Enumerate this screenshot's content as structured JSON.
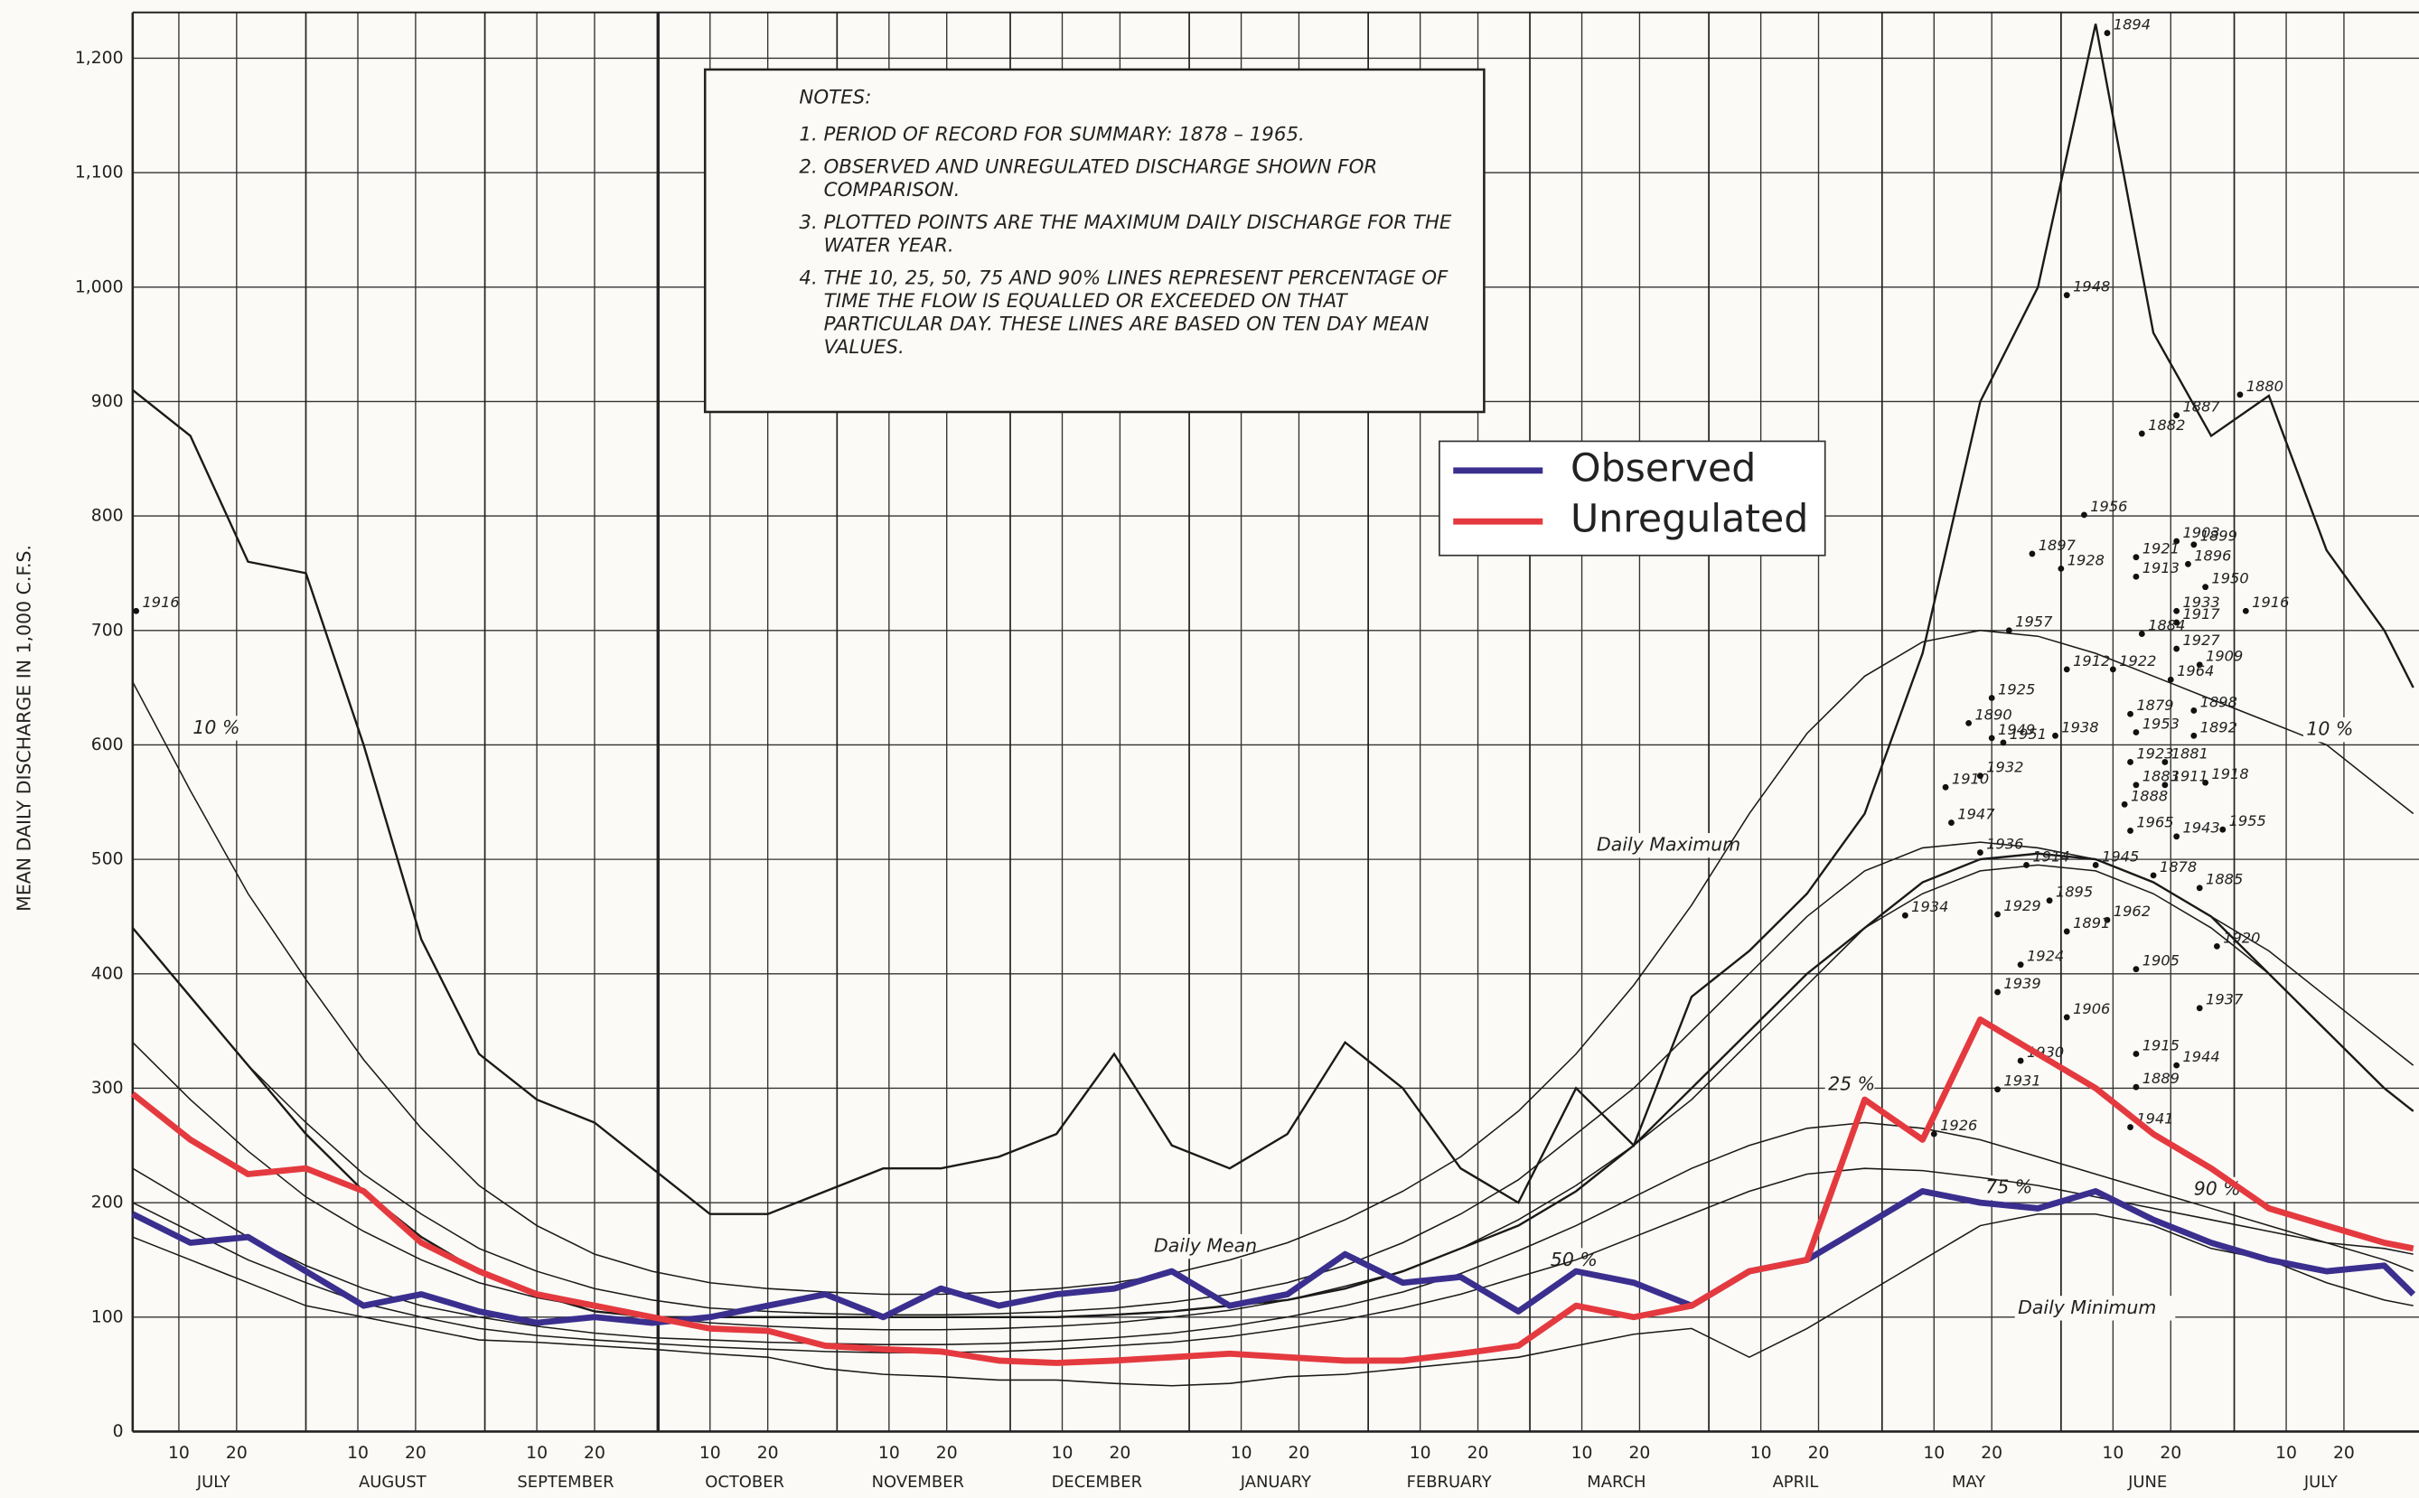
{
  "chart_data": {
    "type": "line",
    "y_label": "MEAN DAILY DISCHARGE IN 1,000 C.F.S.",
    "xlim": [
      1,
      397
    ],
    "ylim": [
      0,
      1240
    ],
    "grid": true,
    "yticks": [
      0,
      100,
      200,
      300,
      400,
      500,
      600,
      700,
      800,
      900,
      {
        "value": 1000,
        "label": "1,000"
      },
      {
        "value": 1100,
        "label": "1,100"
      },
      {
        "value": 1200,
        "label": "1,200"
      }
    ],
    "xticks": [
      {
        "value": 9,
        "label": "10"
      },
      {
        "value": 19,
        "label": "20"
      },
      {
        "value": 40,
        "label": "10"
      },
      {
        "value": 50,
        "label": "20"
      },
      {
        "value": 71,
        "label": "10"
      },
      {
        "value": 81,
        "label": "20"
      },
      {
        "value": 101,
        "label": "10"
      },
      {
        "value": 111,
        "label": "20"
      },
      {
        "value": 132,
        "label": "10"
      },
      {
        "value": 142,
        "label": "20"
      },
      {
        "value": 162,
        "label": "10"
      },
      {
        "value": 172,
        "label": "20"
      },
      {
        "value": 193,
        "label": "10"
      },
      {
        "value": 203,
        "label": "20"
      },
      {
        "value": 224,
        "label": "10"
      },
      {
        "value": 234,
        "label": "20"
      },
      {
        "value": 252,
        "label": "10"
      },
      {
        "value": 262,
        "label": "20"
      },
      {
        "value": 283,
        "label": "10"
      },
      {
        "value": 293,
        "label": "20"
      },
      {
        "value": 313,
        "label": "10"
      },
      {
        "value": 323,
        "label": "20"
      },
      {
        "value": 344,
        "label": "10"
      },
      {
        "value": 354,
        "label": "20"
      },
      {
        "value": 374,
        "label": "10"
      },
      {
        "value": 384,
        "label": "20"
      }
    ],
    "month_ticks": [
      {
        "value": 15,
        "label": "JULY"
      },
      {
        "value": 46,
        "label": "AUGUST"
      },
      {
        "value": 76,
        "label": "SEPTEMBER"
      },
      {
        "value": 107,
        "label": "OCTOBER"
      },
      {
        "value": 137,
        "label": "NOVEMBER"
      },
      {
        "value": 168,
        "label": "DECEMBER"
      },
      {
        "value": 199,
        "label": "JANUARY"
      },
      {
        "value": 229,
        "label": "FEBRUARY"
      },
      {
        "value": 258,
        "label": "MARCH"
      },
      {
        "value": 289,
        "label": "APRIL"
      },
      {
        "value": 319,
        "label": "MAY"
      },
      {
        "value": 350,
        "label": "JUNE"
      },
      {
        "value": 380,
        "label": "JULY"
      }
    ],
    "month_starts": [
      31,
      62,
      92,
      123,
      153,
      184,
      215,
      243,
      274,
      304,
      335,
      365
    ],
    "notes_title": "NOTES:",
    "notes": [
      "1. PERIOD OF RECORD FOR SUMMARY: 1878 – 1965.",
      "2. OBSERVED AND UNREGULATED DISCHARGE SHOWN FOR COMPARISON.",
      "3. PLOTTED POINTS ARE THE MAXIMUM DAILY DISCHARGE FOR THE WATER YEAR.",
      "4. THE 10, 25, 50, 75 AND 90% LINES REPRESENT PERCENTAGE OF TIME THE FLOW IS EQUALLED OR EXCEEDED ON THAT PARTICULAR DAY. THESE LINES ARE BASED ON TEN DAY MEAN VALUES."
    ],
    "x": [
      1,
      11,
      21,
      31,
      41,
      51,
      61,
      71,
      81,
      91,
      101,
      111,
      121,
      131,
      141,
      151,
      161,
      171,
      181,
      191,
      201,
      211,
      221,
      231,
      241,
      251,
      261,
      271,
      281,
      291,
      301,
      311,
      321,
      331,
      341,
      351,
      361,
      371,
      381,
      391,
      396
    ],
    "series": [
      {
        "name": "Observed",
        "color": "#3a2f8e",
        "values": [
          190,
          165,
          170,
          140,
          110,
          120,
          105,
          95,
          100,
          95,
          100,
          110,
          120,
          100,
          125,
          110,
          120,
          125,
          140,
          110,
          120,
          155,
          130,
          135,
          105,
          140,
          130,
          110,
          140,
          150,
          180,
          210,
          200,
          195,
          210,
          185,
          165,
          150,
          140,
          145,
          120
        ]
      },
      {
        "name": "Unregulated",
        "color": "#e43a3f",
        "values": [
          295,
          255,
          225,
          230,
          210,
          165,
          140,
          120,
          110,
          100,
          90,
          88,
          75,
          72,
          70,
          62,
          60,
          62,
          65,
          68,
          65,
          62,
          62,
          68,
          75,
          110,
          100,
          110,
          140,
          150,
          290,
          255,
          360,
          330,
          300,
          260,
          230,
          195,
          180,
          165,
          160
        ]
      }
    ],
    "reference_lines": [
      {
        "label": "Daily Maximum",
        "values": [
          910,
          870,
          760,
          750,
          600,
          430,
          330,
          290,
          270,
          230,
          190,
          190,
          210,
          230,
          230,
          240,
          260,
          330,
          250,
          230,
          260,
          340,
          300,
          230,
          200,
          300,
          250,
          380,
          420,
          470,
          540,
          680,
          900,
          1000,
          1230,
          960,
          870,
          905,
          770,
          700,
          650
        ]
      },
      {
        "label": "Daily Mean",
        "values": [
          440,
          380,
          320,
          260,
          210,
          170,
          140,
          120,
          105,
          100,
          100,
          100,
          100,
          100,
          100,
          100,
          100,
          102,
          105,
          110,
          115,
          125,
          140,
          160,
          180,
          210,
          250,
          300,
          350,
          400,
          440,
          480,
          500,
          505,
          500,
          480,
          450,
          400,
          350,
          300,
          280
        ]
      },
      {
        "label": "Daily Minimum",
        "values": [
          170,
          150,
          130,
          110,
          100,
          90,
          80,
          78,
          75,
          72,
          68,
          65,
          55,
          50,
          48,
          45,
          45,
          42,
          40,
          42,
          48,
          50,
          55,
          60,
          65,
          75,
          85,
          90,
          65,
          90,
          120,
          150,
          180,
          190,
          190,
          180,
          160,
          150,
          130,
          115,
          110
        ]
      },
      {
        "label": "10 %",
        "values": [
          655,
          560,
          470,
          395,
          325,
          265,
          215,
          180,
          155,
          140,
          130,
          125,
          122,
          120,
          120,
          122,
          125,
          130,
          138,
          150,
          165,
          185,
          210,
          240,
          280,
          330,
          390,
          460,
          540,
          610,
          660,
          690,
          700,
          695,
          680,
          660,
          640,
          620,
          600,
          560,
          540
        ]
      },
      {
        "label": "25 %",
        "values": [
          440,
          380,
          320,
          270,
          225,
          190,
          160,
          140,
          125,
          115,
          108,
          105,
          103,
          102,
          102,
          103,
          105,
          108,
          113,
          120,
          130,
          145,
          165,
          190,
          220,
          260,
          300,
          350,
          400,
          450,
          490,
          510,
          515,
          510,
          500,
          480,
          450,
          420,
          380,
          340,
          320
        ]
      },
      {
        "label": "50 %",
        "values": [
          340,
          290,
          245,
          205,
          175,
          150,
          130,
          117,
          108,
          100,
          95,
          92,
          90,
          89,
          89,
          90,
          92,
          95,
          100,
          106,
          115,
          127,
          140,
          160,
          185,
          215,
          250,
          290,
          340,
          390,
          440,
          470,
          490,
          495,
          490,
          470,
          440,
          400,
          350,
          300,
          280
        ]
      },
      {
        "label": "75 %",
        "values": [
          230,
          200,
          170,
          145,
          125,
          110,
          100,
          92,
          86,
          82,
          80,
          78,
          77,
          76,
          76,
          77,
          79,
          82,
          86,
          92,
          100,
          110,
          122,
          138,
          158,
          180,
          205,
          230,
          250,
          265,
          270,
          265,
          255,
          240,
          225,
          210,
          195,
          180,
          165,
          150,
          140
        ]
      },
      {
        "label": "90 %",
        "values": [
          200,
          175,
          150,
          130,
          112,
          100,
          90,
          84,
          80,
          77,
          74,
          72,
          70,
          69,
          69,
          70,
          72,
          75,
          78,
          83,
          90,
          98,
          108,
          120,
          135,
          150,
          170,
          190,
          210,
          225,
          230,
          228,
          222,
          215,
          205,
          195,
          185,
          175,
          165,
          160,
          155
        ]
      }
    ],
    "maxima": {
      "x": [
        1.6,
        343,
        336,
        366,
        355,
        349,
        339,
        330,
        335,
        355,
        358,
        348,
        357,
        348,
        360,
        367,
        355,
        355,
        326,
        349,
        355,
        359,
        336,
        344,
        354,
        323,
        358,
        319,
        347,
        323,
        325,
        334,
        348,
        358,
        347,
        353,
        315,
        321,
        360,
        348,
        353,
        316,
        346,
        347,
        355,
        363,
        321,
        329,
        341,
        351,
        359,
        308,
        324,
        333,
        343,
        336,
        362,
        328,
        348,
        324,
        336,
        359,
        328,
        348,
        355,
        324,
        348,
        347,
        313
      ],
      "values": [
        717,
        1222,
        993,
        906,
        888,
        872,
        801,
        767,
        754,
        778,
        775,
        764,
        758,
        747,
        738,
        717,
        717,
        707,
        700,
        697,
        684,
        670,
        666,
        666,
        657,
        641,
        630,
        619,
        627,
        606,
        602,
        608,
        611,
        608,
        585,
        585,
        563,
        573,
        567,
        565,
        565,
        532,
        548,
        525,
        520,
        526,
        506,
        495,
        495,
        486,
        475,
        451,
        452,
        464,
        447,
        437,
        424,
        408,
        404,
        384,
        362,
        370,
        324,
        330,
        320,
        299,
        301,
        266,
        260
      ],
      "labels": [
        "1916",
        "1894",
        "1948",
        "1880",
        "1887",
        "1882",
        "1956",
        "1897",
        "1928",
        "1903",
        "1899",
        "1921",
        "1896",
        "1913",
        "1950",
        "1916",
        "1933",
        "1917",
        "1957",
        "1884",
        "1927",
        "1909",
        "1912",
        "1922",
        "1964",
        "1925",
        "1898",
        "1890",
        "1879",
        "1949",
        "1951",
        "1938",
        "1953",
        "1892",
        "1923",
        "1881",
        "1910",
        "1932",
        "1918",
        "1883",
        "1911",
        "1947",
        "1888",
        "1965",
        "1943",
        "1955",
        "1936",
        "1914",
        "1945",
        "1878",
        "1885",
        "1934",
        "1929",
        "1895",
        "1962",
        "1891",
        "1920",
        "1924",
        "1905",
        "1939",
        "1906",
        "1937",
        "1930",
        "1915",
        "1944",
        "1931",
        "1889",
        "1941",
        "1926"
      ]
    }
  }
}
